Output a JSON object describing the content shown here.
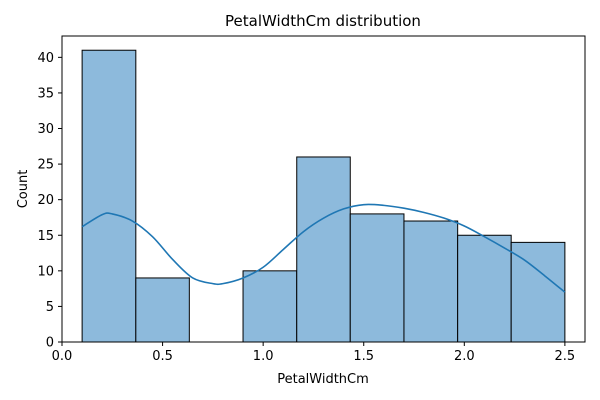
{
  "chart_data": {
    "type": "bar",
    "title": "PetalWidthCm distribution",
    "xlabel": "PetalWidthCm",
    "ylabel": "Count",
    "xlim": [
      0.0,
      2.6
    ],
    "ylim": [
      0,
      43
    ],
    "x_ticks": [
      0.0,
      0.5,
      1.0,
      1.5,
      2.0,
      2.5
    ],
    "x_tick_labels": [
      "0.0",
      "0.5",
      "1.0",
      "1.5",
      "2.0",
      "2.5"
    ],
    "y_ticks": [
      0,
      5,
      10,
      15,
      20,
      25,
      30,
      35,
      40
    ],
    "y_tick_labels": [
      "0",
      "5",
      "10",
      "15",
      "20",
      "25",
      "30",
      "35",
      "40"
    ],
    "bins": [
      {
        "x0": 0.1,
        "x1": 0.367,
        "count": 41
      },
      {
        "x0": 0.367,
        "x1": 0.633,
        "count": 9
      },
      {
        "x0": 0.633,
        "x1": 0.9,
        "count": 0
      },
      {
        "x0": 0.9,
        "x1": 1.167,
        "count": 10
      },
      {
        "x0": 1.167,
        "x1": 1.433,
        "count": 26
      },
      {
        "x0": 1.433,
        "x1": 1.7,
        "count": 18
      },
      {
        "x0": 1.7,
        "x1": 1.967,
        "count": 17
      },
      {
        "x0": 1.967,
        "x1": 2.233,
        "count": 15
      },
      {
        "x0": 2.233,
        "x1": 2.5,
        "count": 14
      }
    ],
    "kde": {
      "x": [
        0.1,
        0.2,
        0.25,
        0.35,
        0.45,
        0.55,
        0.65,
        0.75,
        0.8,
        0.9,
        1.0,
        1.1,
        1.2,
        1.3,
        1.4,
        1.5,
        1.6,
        1.7,
        1.8,
        1.9,
        2.0,
        2.1,
        2.2,
        2.3,
        2.4,
        2.5
      ],
      "y": [
        16.2,
        17.9,
        18.0,
        17.0,
        14.8,
        11.6,
        9.0,
        8.2,
        8.2,
        9.0,
        10.5,
        13.0,
        15.5,
        17.4,
        18.7,
        19.3,
        19.2,
        18.8,
        18.2,
        17.4,
        16.3,
        14.8,
        13.2,
        11.5,
        9.3,
        7.0
      ]
    },
    "colors": {
      "bar_fill": "#8dbadc",
      "bar_edge": "#000000",
      "kde_line": "#1f77b4"
    },
    "grid": false
  }
}
